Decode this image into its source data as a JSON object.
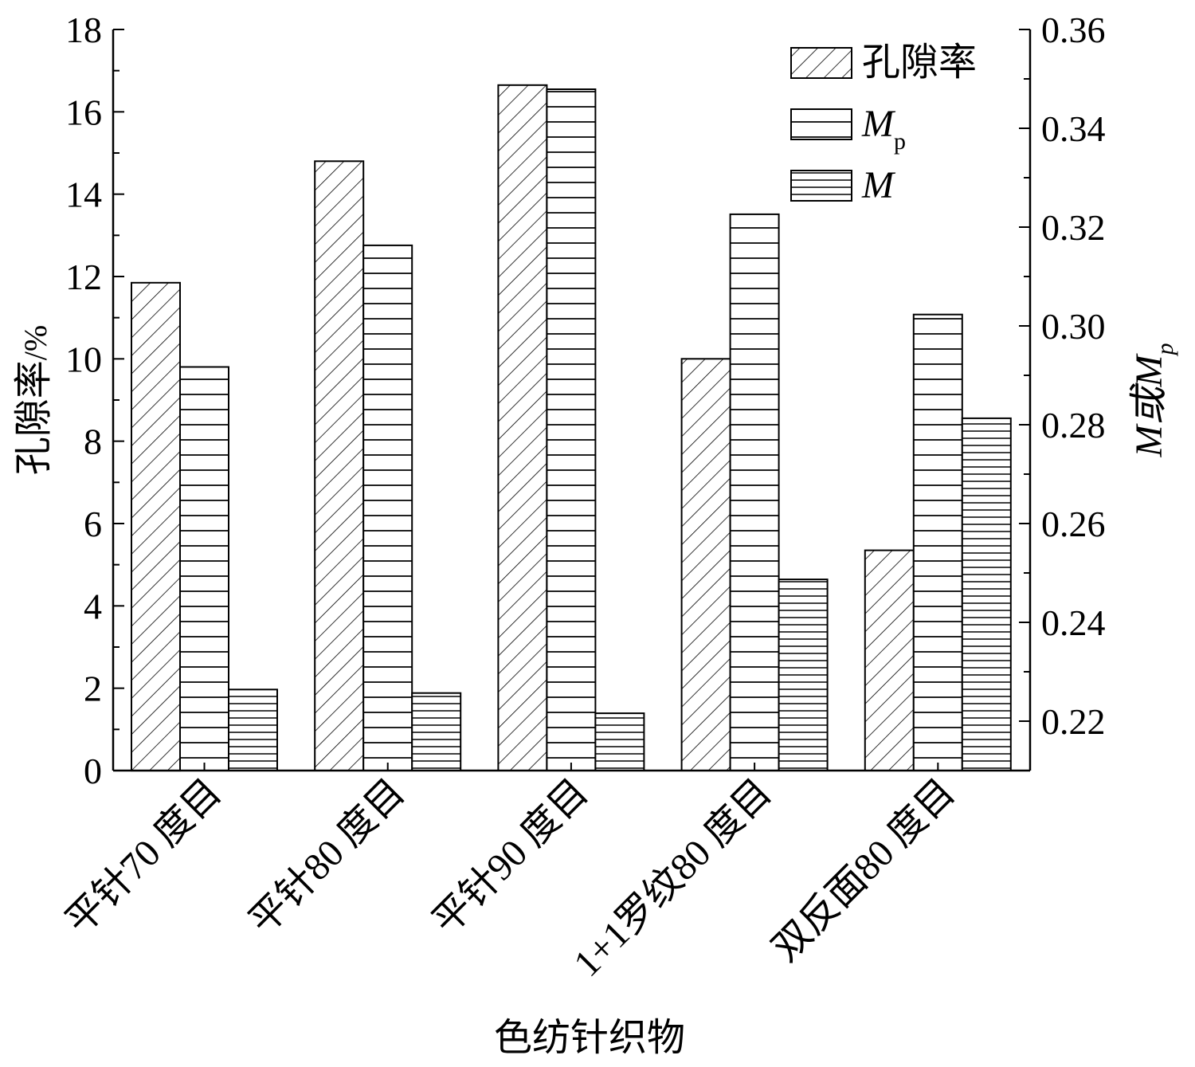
{
  "chart_data": {
    "type": "bar",
    "categories": [
      "平针70 度目",
      "平针80 度目",
      "平针90 度目",
      "1+1罗纹80 度目",
      "双反面80 度目"
    ],
    "series": [
      {
        "name": "孔隙率",
        "axis": "left",
        "pattern": "diagonal-hatch",
        "values": [
          11.85,
          14.8,
          16.65,
          10.0,
          5.35
        ]
      },
      {
        "name": "Mp",
        "axis": "right",
        "pattern": "wide-horizontal-lines",
        "values": [
          0.2917,
          0.3163,
          0.3479,
          0.3226,
          0.3023
        ]
      },
      {
        "name": "M",
        "axis": "right",
        "pattern": "dense-horizontal-lines",
        "values": [
          0.2264,
          0.2257,
          0.2216,
          0.2487,
          0.2813
        ]
      }
    ],
    "left_axis": {
      "label_main": "孔隙率",
      "label_unit": "/%",
      "ylim": [
        0,
        18
      ],
      "ticks": [
        "0",
        "2",
        "4",
        "6",
        "8",
        "10",
        "12",
        "14",
        "16",
        "18"
      ]
    },
    "right_axis": {
      "label_main": "M或M",
      "label_sub": "p",
      "ylim": [
        0.21,
        0.36
      ],
      "ticks": [
        "0.22",
        "0.24",
        "0.26",
        "0.28",
        "0.30",
        "0.32",
        "0.34",
        "0.36"
      ]
    },
    "xlabel": "色纺针织物",
    "legend": {
      "placement": "top-right",
      "entries": [
        {
          "main": "孔隙率",
          "sub": "",
          "italic": false
        },
        {
          "main": "M",
          "sub": "p",
          "italic": true
        },
        {
          "main": "M",
          "sub": "",
          "italic": true
        }
      ]
    },
    "grid": false
  }
}
